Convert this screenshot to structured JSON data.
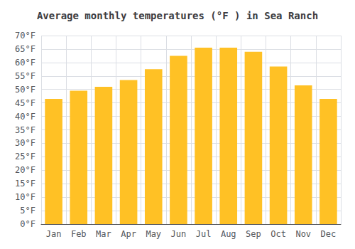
{
  "chart_data": {
    "type": "bar",
    "title": "Average monthly temperatures (°F ) in Sea Ranch",
    "categories": [
      "Jan",
      "Feb",
      "Mar",
      "Apr",
      "May",
      "Jun",
      "Jul",
      "Aug",
      "Sep",
      "Oct",
      "Nov",
      "Dec"
    ],
    "values": [
      46.5,
      49.5,
      51.0,
      53.5,
      57.5,
      62.5,
      65.5,
      65.5,
      64.0,
      58.5,
      51.5,
      46.5
    ],
    "color": "#FFC125",
    "ylim": [
      0,
      70
    ],
    "yticks": [
      {
        "value": 0,
        "label": "0°F"
      },
      {
        "value": 5,
        "label": "5°F"
      },
      {
        "value": 10,
        "label": "10°F"
      },
      {
        "value": 15,
        "label": "15°F"
      },
      {
        "value": 20,
        "label": "20°F"
      },
      {
        "value": 25,
        "label": "25°F"
      },
      {
        "value": 30,
        "label": "30°F"
      },
      {
        "value": 35,
        "label": "35°F"
      },
      {
        "value": 40,
        "label": "40°F"
      },
      {
        "value": 45,
        "label": "45°F"
      },
      {
        "value": 50,
        "label": "50°F"
      },
      {
        "value": 55,
        "label": "55°F"
      },
      {
        "value": 60,
        "label": "60°F"
      },
      {
        "value": 65,
        "label": "65°F"
      },
      {
        "value": 70,
        "label": "70°F"
      }
    ],
    "grid": true
  }
}
